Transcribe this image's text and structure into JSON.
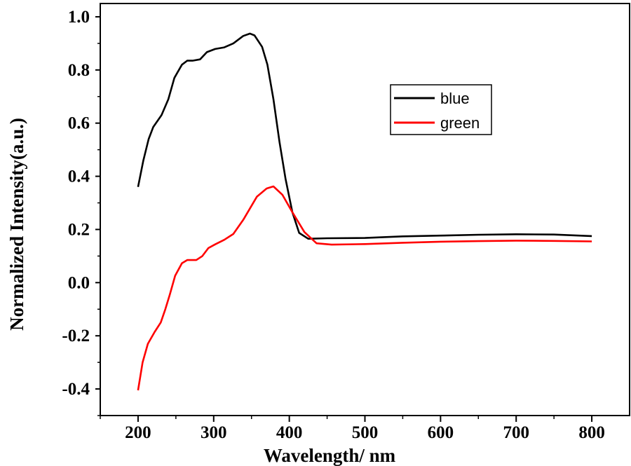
{
  "chart_data": {
    "type": "line",
    "title": "",
    "xlabel": "Wavelength/ nm",
    "ylabel": "Normalized Intensity(a.u.)",
    "xlim": [
      150,
      850
    ],
    "ylim": [
      -0.5,
      1.05
    ],
    "xticks": [
      200,
      300,
      400,
      500,
      600,
      700,
      800
    ],
    "xtick_labels": [
      "200",
      "300",
      "400",
      "500",
      "600",
      "700",
      "800"
    ],
    "yticks": [
      -0.4,
      -0.2,
      0.0,
      0.2,
      0.4,
      0.6,
      0.8,
      1.0
    ],
    "ytick_labels": [
      "-0.4",
      "-0.2",
      "0.0",
      "0.2",
      "0.4",
      "0.6",
      "0.8",
      "1.0"
    ],
    "grid": false,
    "legend_position": "upper-right-center",
    "series": [
      {
        "name": "blue",
        "color": "#000000",
        "x": [
          200,
          207,
          214,
          220,
          231,
          240,
          248,
          258,
          265,
          272,
          282,
          291,
          302,
          314,
          326,
          339,
          348,
          354,
          364,
          371,
          379,
          387,
          395,
          404,
          413,
          425,
          450,
          500,
          550,
          600,
          650,
          700,
          750,
          800
        ],
        "y": [
          0.36,
          0.46,
          0.54,
          0.585,
          0.63,
          0.69,
          0.77,
          0.82,
          0.835,
          0.835,
          0.84,
          0.867,
          0.879,
          0.885,
          0.9,
          0.928,
          0.937,
          0.93,
          0.887,
          0.82,
          0.69,
          0.53,
          0.39,
          0.265,
          0.187,
          0.165,
          0.167,
          0.168,
          0.174,
          0.177,
          0.18,
          0.182,
          0.181,
          0.175
        ]
      },
      {
        "name": "green",
        "color": "#ff0000",
        "x": [
          200,
          206,
          213,
          222,
          230,
          236,
          242,
          249,
          258,
          265,
          277,
          285,
          293,
          302,
          314,
          326,
          339,
          357,
          370,
          379,
          391,
          404,
          420,
          436,
          456,
          500,
          550,
          600,
          650,
          700,
          750,
          800
        ],
        "y": [
          -0.405,
          -0.3,
          -0.23,
          -0.185,
          -0.15,
          -0.1,
          -0.045,
          0.026,
          0.073,
          0.085,
          0.085,
          0.1,
          0.13,
          0.144,
          0.161,
          0.183,
          0.236,
          0.323,
          0.354,
          0.362,
          0.33,
          0.265,
          0.19,
          0.148,
          0.143,
          0.145,
          0.15,
          0.154,
          0.156,
          0.158,
          0.157,
          0.155
        ]
      }
    ]
  }
}
